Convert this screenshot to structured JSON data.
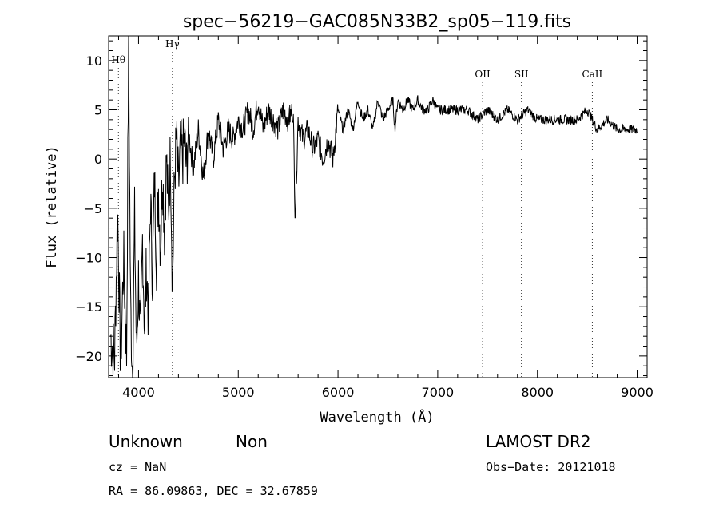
{
  "chart_data": {
    "type": "line",
    "title": "spec−56219−GAC085N33B2_sp05−119.fits",
    "xlabel": "Wavelength (Å)",
    "ylabel": "Flux (relative)",
    "xlim": [
      3700,
      9100
    ],
    "ylim": [
      -22.2,
      12.5
    ],
    "x_ticks": [
      4000,
      5000,
      6000,
      7000,
      8000,
      9000
    ],
    "y_ticks": [
      -20,
      -15,
      -10,
      -5,
      0,
      5,
      10
    ],
    "x_minor_step": 200,
    "y_minor_step": 1,
    "grid": false,
    "spectrum": {
      "x": [
        3720,
        3760,
        3790,
        3820,
        3850,
        3880,
        3900,
        3920,
        3940,
        3960,
        3980,
        4000,
        4020,
        4040,
        4060,
        4080,
        4100,
        4120,
        4140,
        4160,
        4180,
        4200,
        4220,
        4240,
        4260,
        4280,
        4300,
        4320,
        4340,
        4360,
        4380,
        4400,
        4420,
        4440,
        4460,
        4480,
        4500,
        4550,
        4600,
        4650,
        4700,
        4750,
        4800,
        4850,
        4900,
        4950,
        5000,
        5050,
        5100,
        5150,
        5200,
        5250,
        5300,
        5350,
        5400,
        5450,
        5500,
        5550,
        5570,
        5600,
        5650,
        5700,
        5750,
        5800,
        5850,
        5900,
        5950,
        6000,
        6050,
        6100,
        6150,
        6200,
        6250,
        6300,
        6350,
        6400,
        6450,
        6500,
        6550,
        6570,
        6600,
        6650,
        6700,
        6750,
        6800,
        6850,
        6900,
        6950,
        7000,
        7100,
        7200,
        7300,
        7400,
        7500,
        7600,
        7700,
        7800,
        7900,
        8000,
        8100,
        8200,
        8300,
        8400,
        8500,
        8550,
        8600,
        8700,
        8800,
        8900,
        9000
      ],
      "y": [
        -18,
        -20,
        -5,
        -21,
        -10,
        -20,
        12,
        -15,
        -22,
        -6,
        -20,
        -12,
        -19,
        -8,
        -17,
        -11,
        -16,
        -4,
        -12,
        -2,
        -10,
        -3,
        -9,
        -1,
        -7,
        0,
        -6,
        1,
        -13,
        -2,
        2,
        -3,
        1,
        0,
        2,
        -1,
        3,
        -1,
        3,
        -2,
        3,
        0,
        4,
        1,
        3,
        2,
        4,
        3,
        5,
        3,
        6,
        3,
        5,
        4,
        3,
        5,
        4,
        5,
        -5.8,
        4,
        2,
        3,
        1,
        2,
        0,
        2,
        0,
        5,
        3,
        5,
        3,
        6,
        4,
        5,
        3,
        6,
        4,
        5,
        6,
        3,
        6,
        5,
        6,
        5,
        6,
        5,
        5,
        6,
        5,
        5,
        5,
        5,
        4,
        5,
        4,
        5,
        4,
        5,
        4,
        4,
        4,
        4,
        4,
        5,
        4,
        3,
        4,
        3,
        3,
        3
      ]
    },
    "line_markers": [
      {
        "label": "Hθ",
        "x": 3798
      },
      {
        "label": "Hγ",
        "x": 4340
      },
      {
        "label": "OII",
        "x": 7450
      },
      {
        "label": "SII",
        "x": 7840
      },
      {
        "label": "CaII",
        "x": 8550
      }
    ]
  },
  "footer": {
    "class_label": "Unknown",
    "subclass_label": "Non",
    "survey_label": "LAMOST DR2",
    "cz_text": "cz = NaN",
    "obs_date_text": "Obs−Date: 20121018",
    "radec_text": "RA =  86.09863, DEC =  32.67859"
  },
  "colors": {
    "line": "#000000",
    "background": "#ffffff"
  }
}
